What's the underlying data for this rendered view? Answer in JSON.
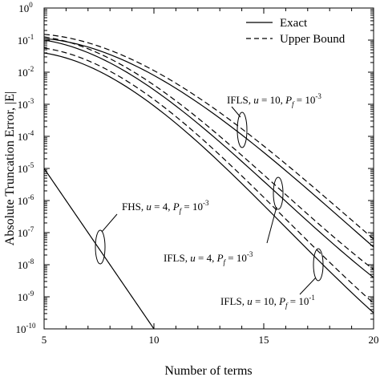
{
  "chart_data": {
    "type": "line",
    "title": "",
    "xlabel": "Number of terms",
    "ylabel": "Absolute Truncation Error, |E|",
    "xlim": [
      5,
      20
    ],
    "ylim_exponents": [
      -10,
      0
    ],
    "y_scale": "log",
    "grid": false,
    "legend": {
      "placement": "top-right",
      "entries": [
        {
          "label": "Exact",
          "style": "solid"
        },
        {
          "label": "Upper Bound",
          "style": "dashed"
        }
      ]
    },
    "x_ticks": [
      5,
      10,
      15,
      20
    ],
    "y_tick_exponents": [
      0,
      -1,
      -2,
      -3,
      -4,
      -5,
      -6,
      -7,
      -8,
      -9,
      -10
    ],
    "y_tick_base": "10",
    "series": [
      {
        "group": "IFLS u=10 Pf=1e-3",
        "style": "solid",
        "x": [
          5,
          10,
          15,
          20
        ],
        "y_log10": [
          -0.95,
          -2.1,
          -4.5,
          -7.45
        ]
      },
      {
        "group": "IFLS u=10 Pf=1e-3",
        "style": "dashed",
        "x": [
          5,
          10,
          15,
          20
        ],
        "y_log10": [
          -0.82,
          -1.95,
          -4.3,
          -7.2
        ]
      },
      {
        "group": "IFLS u=4 Pf=1e-3",
        "style": "solid",
        "x": [
          5,
          10,
          15,
          20
        ],
        "y_log10": [
          -1.0,
          -2.55,
          -5.4,
          -8.4
        ]
      },
      {
        "group": "IFLS u=4 Pf=1e-3",
        "style": "dashed",
        "x": [
          5,
          10,
          15,
          20
        ],
        "y_log10": [
          -0.9,
          -2.4,
          -5.2,
          -8.15
        ]
      },
      {
        "group": "IFLS u=10 Pf=1e-1",
        "style": "solid",
        "x": [
          5,
          10,
          15,
          20
        ],
        "y_log10": [
          -1.4,
          -3.05,
          -6.15,
          -9.5
        ]
      },
      {
        "group": "IFLS u=10 Pf=1e-1",
        "style": "dashed",
        "x": [
          5,
          10,
          15,
          20
        ],
        "y_log10": [
          -1.25,
          -2.85,
          -5.9,
          -9.2
        ]
      },
      {
        "group": "FHS u=4 Pf=1e-3",
        "style": "solid",
        "x": [
          5,
          10
        ],
        "y_log10": [
          -5.0,
          -10.0
        ]
      }
    ],
    "annotations": [
      {
        "id": "ifls-u10-pf3",
        "prefix": "IFLS, ",
        "var1": "u",
        "mid": " = 10, ",
        "var2": "P",
        "sub": "f",
        "eq": " = 10",
        "exp": "-3"
      },
      {
        "id": "ifls-u4-pf3",
        "prefix": "IFLS, ",
        "var1": "u",
        "mid": " = 4, ",
        "var2": "P",
        "sub": "f",
        "eq": " = 10",
        "exp": "-3"
      },
      {
        "id": "ifls-u10-pf1",
        "prefix": "IFLS, ",
        "var1": "u",
        "mid": " = 10, ",
        "var2": "P",
        "sub": "f",
        "eq": " = 10",
        "exp": "-1"
      },
      {
        "id": "fhs-u4-pf3",
        "prefix": "FHS, ",
        "var1": "u",
        "mid": " = 4, ",
        "var2": "P",
        "sub": "f",
        "eq": " = 10",
        "exp": "-3"
      }
    ]
  }
}
